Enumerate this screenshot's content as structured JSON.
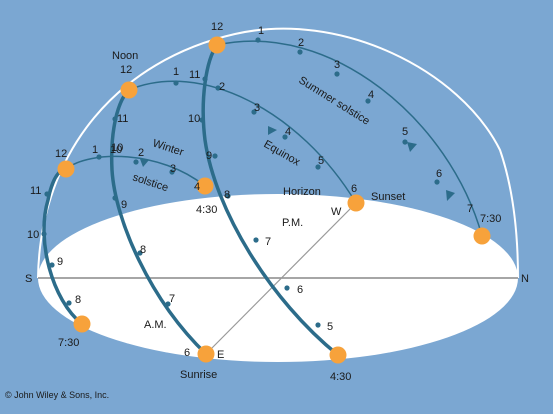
{
  "labels": {
    "noon": "Noon",
    "noon_hour": "12",
    "horizon": "Horizon",
    "pm": "P.M.",
    "am": "A.M.",
    "west": "W",
    "east": "E",
    "south": "S",
    "north": "N",
    "sunset": "Sunset",
    "sunrise": "Sunrise",
    "summer_path": "Summer solstice",
    "equinox_path": "Equinox",
    "winter_path_1": "Winter",
    "winter_path_2": "solstice",
    "copyright": "© John Wiley & Sons, Inc."
  },
  "summer": {
    "upper_hours": [
      "1",
      "2",
      "3",
      "4",
      "5",
      "6",
      "7"
    ],
    "lower_hours": [
      "11",
      "10",
      "9",
      "8",
      "7",
      "6",
      "5"
    ],
    "noon_hour": "12",
    "end_time": "7:30",
    "start_time": "4:30"
  },
  "equinox": {
    "upper_hours": [
      "1",
      "2",
      "3",
      "4",
      "5",
      "6"
    ],
    "lower_hours": [
      "11",
      "10",
      "9",
      "8",
      "7",
      "6"
    ]
  },
  "winter": {
    "upper_hours": [
      "1",
      "2",
      "3",
      "4"
    ],
    "lower_hours": [
      "11",
      "10",
      "9",
      "8"
    ],
    "noon_hour": "12",
    "end_time": "4:30",
    "start_time": "7:30"
  },
  "colors": {
    "sky": "#7ba7d2",
    "ground": "#ffffff",
    "path": "#2c6c8a",
    "sun": "#f7a23b",
    "line": "#888888"
  }
}
